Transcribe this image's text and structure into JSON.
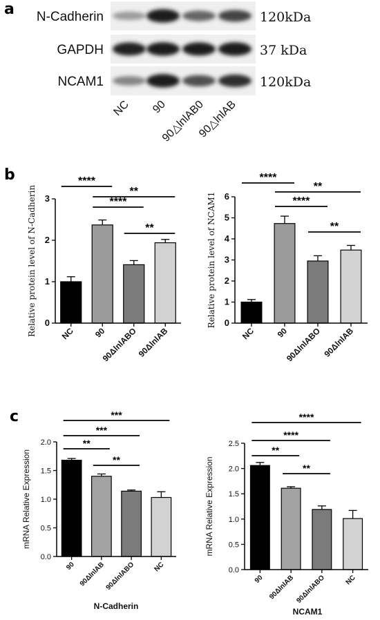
{
  "panels": {
    "a": "a",
    "b": "b",
    "c": "c"
  },
  "blot": {
    "rows": [
      {
        "protein": "N-Cadherin",
        "size": "120kDa",
        "intensities": [
          0.35,
          0.95,
          0.6,
          0.75
        ]
      },
      {
        "protein": "GAPDH",
        "size": "37 kDa",
        "intensities": [
          0.92,
          0.95,
          0.93,
          0.95
        ]
      },
      {
        "protein": "NCAM1",
        "size": "120kDa",
        "intensities": [
          0.45,
          0.95,
          0.7,
          0.85
        ]
      }
    ],
    "lanes": [
      "NC",
      "90",
      "90△lnlAB0",
      "90△lnlAB"
    ]
  },
  "chart_data": [
    {
      "type": "bar",
      "panel": "b",
      "ylabel": "Relative protein level of N-Cadherin",
      "categories": [
        "NC",
        "90",
        "90ΔlnlABO",
        "90ΔlnlAB"
      ],
      "values": [
        1.0,
        2.37,
        1.41,
        1.94
      ],
      "errors": [
        0.12,
        0.12,
        0.1,
        0.08
      ],
      "colors": [
        "#000000",
        "#9b9b9b",
        "#7b7b7b",
        "#d2d2d2"
      ],
      "ylim": [
        0,
        3
      ],
      "yticks": [
        "0",
        "1",
        "2",
        "3"
      ],
      "significance": [
        {
          "from": 0,
          "to": 1,
          "label": "****"
        },
        {
          "from": 1,
          "to": 3,
          "label": "**"
        },
        {
          "from": 1,
          "to": 2,
          "label": "****"
        },
        {
          "from": 2,
          "to": 3,
          "label": "**"
        }
      ]
    },
    {
      "type": "bar",
      "panel": "b",
      "ylabel": "Relative protein level of NCAM1",
      "categories": [
        "NC",
        "90",
        "90ΔlnlABO",
        "90ΔlnlAB"
      ],
      "values": [
        1.0,
        4.73,
        2.95,
        3.47
      ],
      "errors": [
        0.12,
        0.35,
        0.25,
        0.22
      ],
      "colors": [
        "#000000",
        "#9b9b9b",
        "#7b7b7b",
        "#d2d2d2"
      ],
      "ylim": [
        0,
        6
      ],
      "yticks": [
        "0",
        "1",
        "2",
        "3",
        "4",
        "5",
        "6"
      ],
      "significance": [
        {
          "from": 0,
          "to": 1,
          "label": "****"
        },
        {
          "from": 1,
          "to": 3,
          "label": "**"
        },
        {
          "from": 1,
          "to": 2,
          "label": "****"
        },
        {
          "from": 2,
          "to": 3,
          "label": "**"
        }
      ]
    },
    {
      "type": "bar",
      "panel": "c",
      "xlabel": "N-Cadherin",
      "ylabel": "mRNA Relative Expression",
      "categories": [
        "90",
        "90ΔlnlAB",
        "90ΔlnlABO",
        "NC"
      ],
      "values": [
        1.68,
        1.4,
        1.14,
        1.03
      ],
      "errors": [
        0.03,
        0.04,
        0.02,
        0.1
      ],
      "colors": [
        "#000000",
        "#a3a3a3",
        "#7b7b7b",
        "#d2d2d2"
      ],
      "ylim": [
        0,
        2.0
      ],
      "yticks": [
        "0.0",
        "0.5",
        "1.0",
        "1.5",
        "2.0"
      ],
      "significance": [
        {
          "from": 0,
          "to": 3,
          "label": "***"
        },
        {
          "from": 0,
          "to": 2,
          "label": "***"
        },
        {
          "from": 0,
          "to": 1,
          "label": "**"
        },
        {
          "from": 1,
          "to": 2,
          "label": "**"
        }
      ]
    },
    {
      "type": "bar",
      "panel": "c",
      "xlabel": "NCAM1",
      "ylabel": "mRNA Relative Expression",
      "categories": [
        "90",
        "90ΔlnlAB",
        "90ΔlnlABO",
        "NC"
      ],
      "values": [
        2.06,
        1.61,
        1.19,
        1.01
      ],
      "errors": [
        0.06,
        0.03,
        0.07,
        0.16
      ],
      "colors": [
        "#000000",
        "#a3a3a3",
        "#7b7b7b",
        "#d2d2d2"
      ],
      "ylim": [
        0,
        2.5
      ],
      "yticks": [
        "0.0",
        "0.5",
        "1.0",
        "1.5",
        "2.0",
        "2.5"
      ],
      "significance": [
        {
          "from": 0,
          "to": 3,
          "label": "****"
        },
        {
          "from": 0,
          "to": 2,
          "label": "****"
        },
        {
          "from": 0,
          "to": 1,
          "label": "**"
        },
        {
          "from": 1,
          "to": 2,
          "label": "**"
        }
      ]
    }
  ]
}
